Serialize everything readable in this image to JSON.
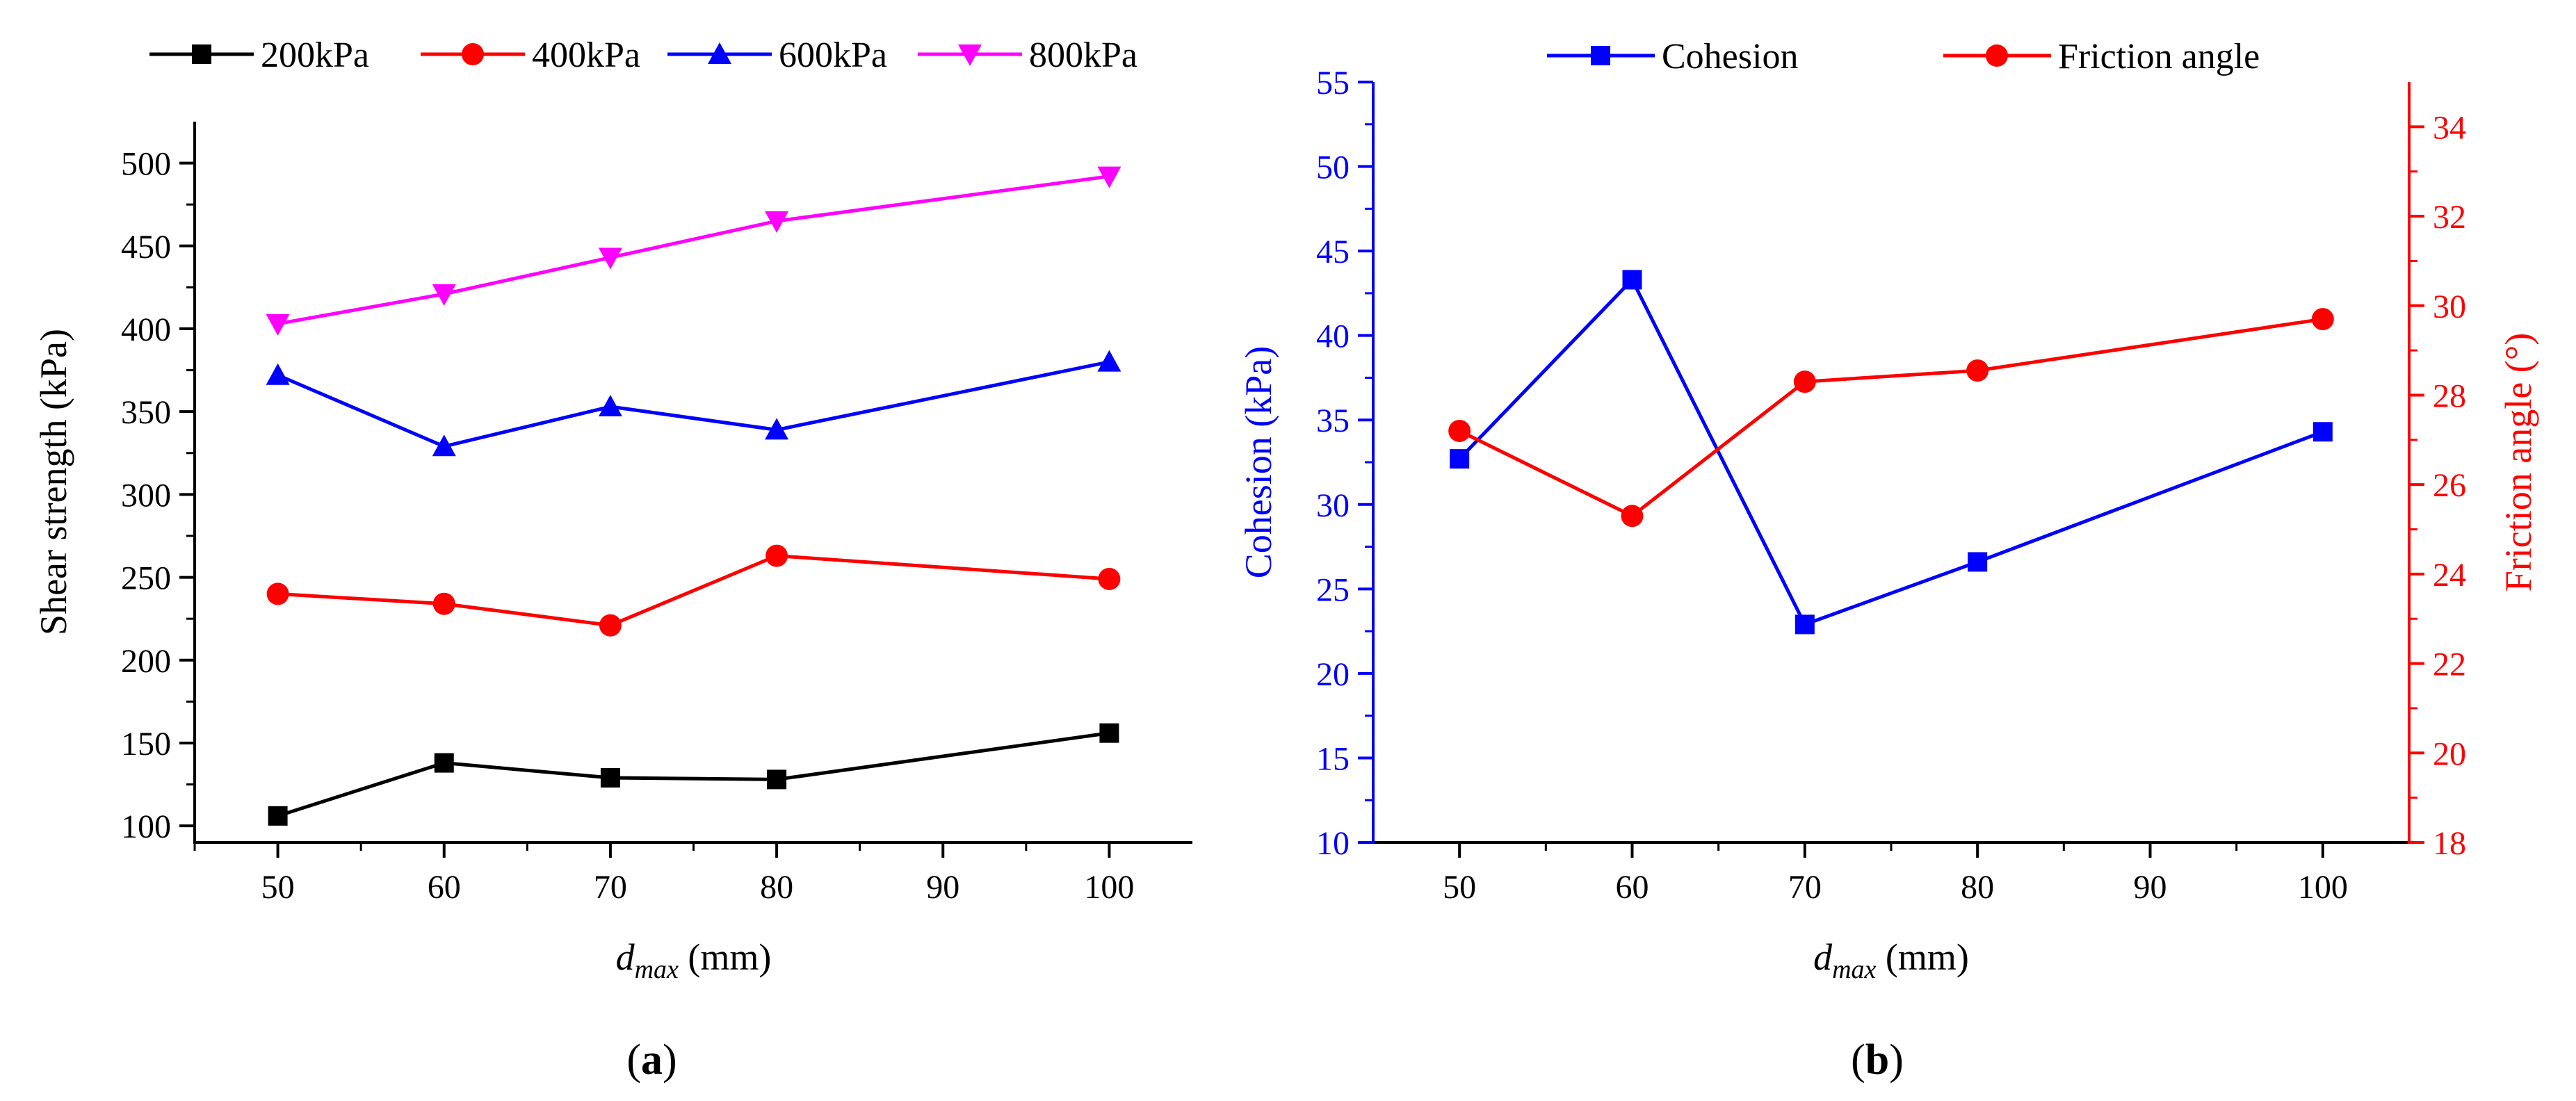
{
  "chart_data": [
    {
      "type": "line",
      "panel_label": {
        "open": "(",
        "letter": "a",
        "close": ")"
      },
      "xlabel": {
        "var": "d",
        "sub": "max",
        "unit": " (mm)"
      },
      "ylabel": "Shear strength (kPa)",
      "xlim": [
        45,
        105
      ],
      "ylim": [
        90,
        525
      ],
      "xticks": [
        50,
        60,
        70,
        80,
        90,
        100
      ],
      "yticks": [
        100,
        150,
        200,
        250,
        300,
        350,
        400,
        450,
        500
      ],
      "legend_position": "top",
      "series": [
        {
          "name": "200kPa",
          "color": "#000000",
          "marker": "square",
          "x": [
            50,
            60,
            70,
            80,
            100
          ],
          "values": [
            106,
            138,
            129,
            128,
            156
          ]
        },
        {
          "name": "400kPa",
          "color": "#ff0000",
          "marker": "circle",
          "x": [
            50,
            60,
            70,
            80,
            100
          ],
          "values": [
            240,
            234,
            221,
            263,
            249
          ]
        },
        {
          "name": "600kPa",
          "color": "#0000ff",
          "marker": "triangle-up",
          "x": [
            50,
            60,
            70,
            80,
            100
          ],
          "values": [
            372,
            329,
            353,
            339,
            380
          ]
        },
        {
          "name": "800kPa",
          "color": "#ff00ff",
          "marker": "triangle-down",
          "x": [
            50,
            60,
            70,
            80,
            100
          ],
          "values": [
            403,
            421,
            443,
            465,
            492
          ]
        }
      ]
    },
    {
      "type": "line",
      "panel_label": {
        "open": "(",
        "letter": "b",
        "close": ")"
      },
      "xlabel": {
        "var": "d",
        "sub": "max",
        "unit": " (mm)"
      },
      "ylabel_left": "Cohesion (kPa)",
      "ylabel_right": "Friction angle (°)",
      "xlim": [
        45,
        105
      ],
      "ylim_left": [
        10,
        55
      ],
      "ylim_right": [
        18,
        35
      ],
      "xticks": [
        50,
        60,
        70,
        80,
        90,
        100
      ],
      "yticks_left": [
        10,
        15,
        20,
        25,
        30,
        35,
        40,
        45,
        50,
        55
      ],
      "yticks_right": [
        18,
        20,
        22,
        24,
        26,
        28,
        30,
        32,
        34
      ],
      "left_axis_color": "#0000ff",
      "right_axis_color": "#ff0000",
      "legend_position": "top",
      "series": [
        {
          "name": "Cohesion",
          "axis": "left",
          "color": "#0000ff",
          "marker": "square",
          "x": [
            50,
            60,
            70,
            80,
            100
          ],
          "values": [
            32.7,
            43.3,
            22.9,
            26.6,
            34.3
          ]
        },
        {
          "name": "Friction angle",
          "axis": "right",
          "color": "#ff0000",
          "marker": "circle",
          "x": [
            50,
            60,
            70,
            80,
            100
          ],
          "values": [
            27.2,
            25.3,
            28.3,
            28.55,
            29.7
          ]
        }
      ]
    }
  ]
}
